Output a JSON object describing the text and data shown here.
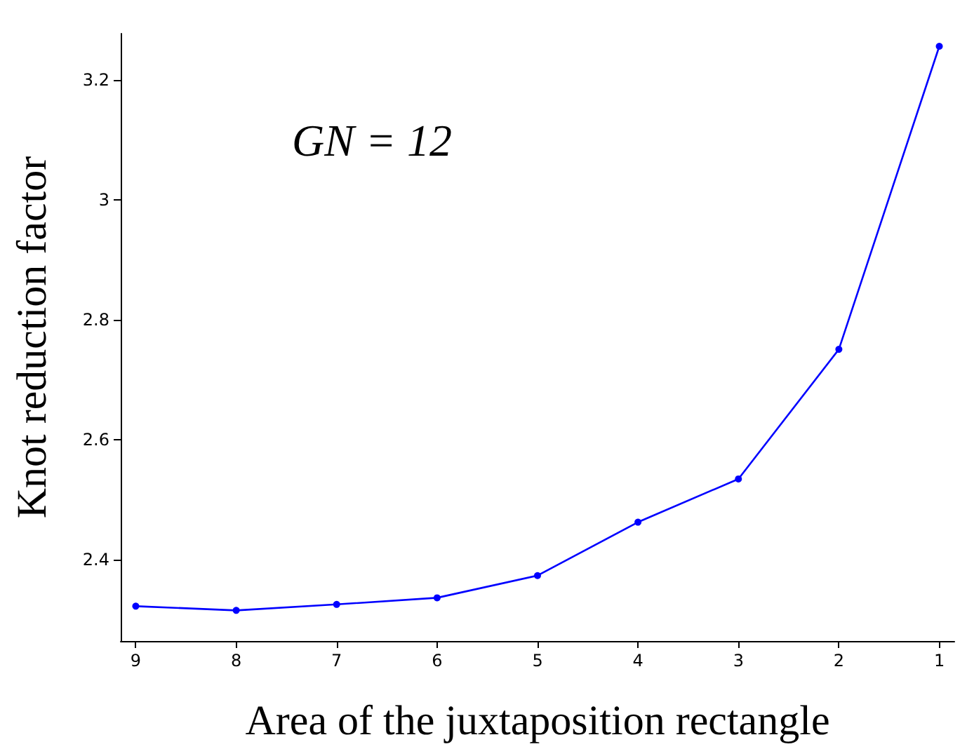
{
  "chart_data": {
    "type": "line",
    "xlabel": "Area of the juxtaposition rectangle",
    "ylabel": "Knot reduction factor",
    "annotations": [
      "GN = 12"
    ],
    "x": [
      9,
      8,
      7,
      6,
      5,
      4,
      3,
      2,
      1
    ],
    "series": [
      {
        "color": "#0000ff",
        "values": [
          2.323,
          2.316,
          2.326,
          2.337,
          2.374,
          2.463,
          2.535,
          2.751,
          3.256
        ]
      }
    ],
    "xlim": [
      9.15,
      0.85
    ],
    "xticks": [
      9,
      8,
      7,
      6,
      5,
      4,
      3,
      2,
      1
    ],
    "ylim": [
      2.265,
      3.277
    ],
    "yticks": [
      2.4,
      2.6,
      2.8,
      3,
      3.2
    ],
    "marker": "circle",
    "line_style": "solid"
  }
}
